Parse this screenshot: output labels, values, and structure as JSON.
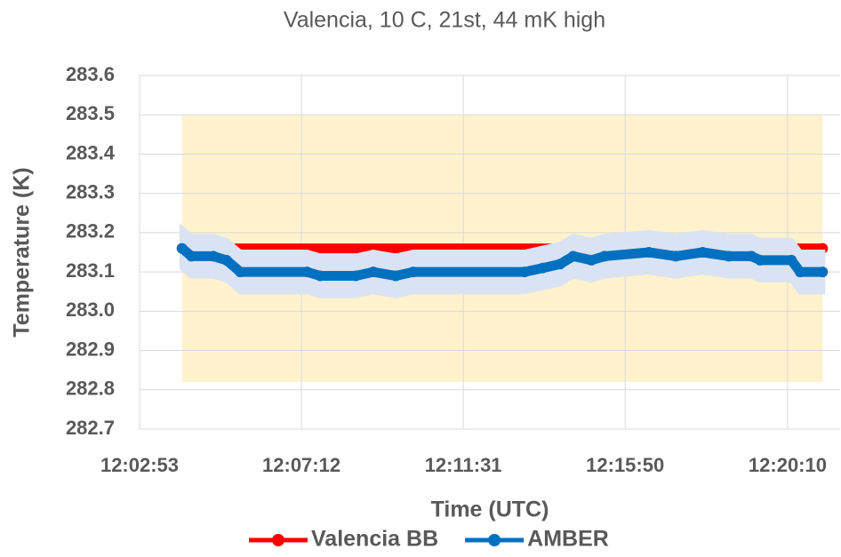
{
  "chart_data": {
    "type": "line",
    "title": "Valencia, 10 C, 21st, 44 mK high",
    "xlabel": "Time (UTC)",
    "ylabel": "Temperature (K)",
    "xlim": [
      43373,
      44494
    ],
    "xticks": [
      {
        "value": 43373,
        "label": "12:02:53"
      },
      {
        "value": 43632,
        "label": "12:07:12"
      },
      {
        "value": 43891,
        "label": "12:11:31"
      },
      {
        "value": 44150,
        "label": "12:15:50"
      },
      {
        "value": 44410,
        "label": "12:20:10"
      }
    ],
    "ylim": [
      282.7,
      283.6
    ],
    "yticks": [
      282.7,
      282.8,
      282.9,
      {
        "value": 283,
        "label": "283.0"
      },
      283.1,
      283.2,
      283.3,
      283.4,
      283.5,
      283.6
    ],
    "grid": true,
    "shaded_region": {
      "x": [
        43441,
        44466
      ],
      "y": [
        282.82,
        283.5
      ],
      "color": "#fff2cc"
    },
    "legend": "bottom",
    "series": [
      {
        "name": "Valencia BB",
        "color": "#ff0000",
        "x": [
          43441,
          44466
        ],
        "values": [
          283.16,
          283.16
        ]
      },
      {
        "name": "AMBER",
        "color": "#0070c0",
        "error": 0.05,
        "error_color": "#dae3f3",
        "x": [
          43441,
          43456,
          43491,
          43512,
          43534,
          43641,
          43662,
          43719,
          43747,
          43783,
          43811,
          43989,
          44018,
          44046,
          44067,
          44096,
          44117,
          44188,
          44231,
          44274,
          44316,
          44352,
          44366,
          44416,
          44430,
          44466
        ],
        "values": [
          283.16,
          283.14,
          283.14,
          283.13,
          283.1,
          283.1,
          283.09,
          283.09,
          283.1,
          283.09,
          283.1,
          283.1,
          283.11,
          283.12,
          283.14,
          283.13,
          283.14,
          283.15,
          283.14,
          283.15,
          283.14,
          283.14,
          283.13,
          283.13,
          283.1,
          283.1
        ]
      }
    ]
  }
}
